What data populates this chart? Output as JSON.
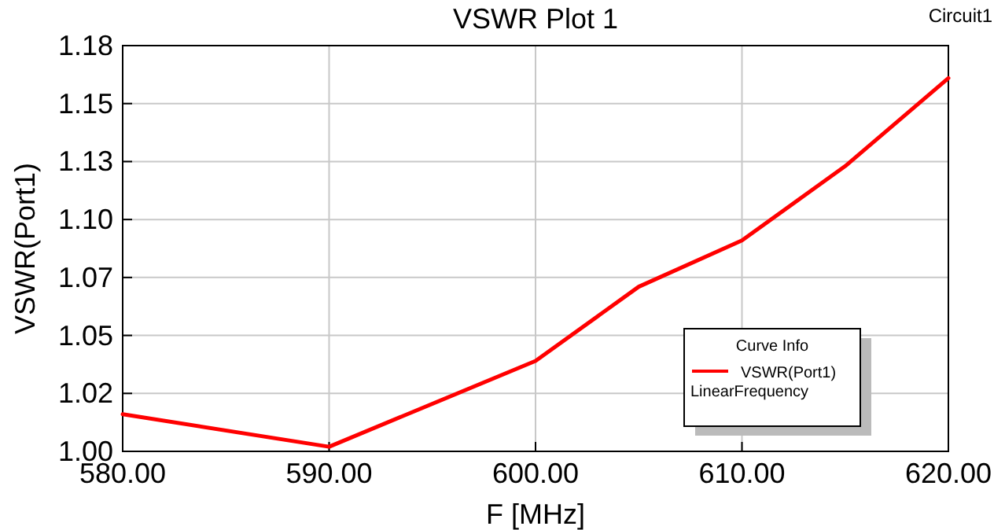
{
  "chart_data": {
    "type": "line",
    "title": "VSWR Plot 1",
    "xlabel": "F [MHz]",
    "ylabel": "VSWR(Port1)",
    "legend_title": "Curve Info",
    "annotations": [
      "Circuit1",
      "LinearFrequency"
    ],
    "x": [
      580,
      590,
      600,
      605,
      610,
      615,
      620
    ],
    "series": [
      {
        "name": "VSWR(Port1)",
        "color": "#ff0000",
        "values": [
          1.016,
          1.002,
          1.039,
          1.071,
          1.091,
          1.123,
          1.161
        ]
      }
    ],
    "xlim": [
      580,
      620
    ],
    "xticks": [
      {
        "value": 580,
        "label": "580.00"
      },
      {
        "value": 590,
        "label": "590.00"
      },
      {
        "value": 600,
        "label": "600.00"
      },
      {
        "value": 610,
        "label": "610.00"
      },
      {
        "value": 620,
        "label": "620.00"
      }
    ],
    "ylim": [
      1,
      1.175
    ],
    "yticks": [
      {
        "value": 1,
        "label": "1.00"
      },
      {
        "value": 1.025,
        "label": "1.02"
      },
      {
        "value": 1.05,
        "label": "1.05"
      },
      {
        "value": 1.075,
        "label": "1.07"
      },
      {
        "value": 1.1,
        "label": "1.10"
      },
      {
        "value": 1.125,
        "label": "1.13"
      },
      {
        "value": 1.15,
        "label": "1.15"
      },
      {
        "value": 1.175,
        "label": "1.18"
      }
    ],
    "grid": true,
    "legend": "bottom right",
    "marker": "none",
    "line_style": "solid"
  }
}
